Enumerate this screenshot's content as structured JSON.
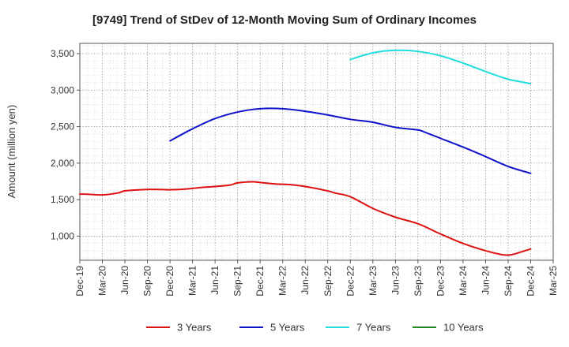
{
  "chart_data": {
    "type": "line",
    "title": "[9749]  Trend of StDev of 12-Month Moving Sum of Ordinary Incomes",
    "xlabel": "",
    "ylabel": "Amount (million yen)",
    "x_ticks": [
      "Dec-19",
      "Mar-20",
      "Jun-20",
      "Sep-20",
      "Dec-20",
      "Mar-21",
      "Jun-21",
      "Sep-21",
      "Dec-21",
      "Mar-22",
      "Jun-22",
      "Sep-22",
      "Dec-22",
      "Mar-23",
      "Jun-23",
      "Sep-23",
      "Dec-23",
      "Mar-24",
      "Jun-24",
      "Sep-24",
      "Dec-24",
      "Mar-25"
    ],
    "y_ticks": [
      1000,
      1500,
      2000,
      2500,
      3000,
      3500
    ],
    "y_tick_labels": [
      "1,000",
      "1,500",
      "2,000",
      "2,500",
      "3,000",
      "3,500"
    ],
    "ylim": [
      670,
      3640
    ],
    "grid": true,
    "legend_position": "bottom",
    "series": [
      {
        "name": "3 Years",
        "color": "#dd1111",
        "x": [
          "Dec-19",
          "Jan-20",
          "Mar-20",
          "May-20",
          "Jun-20",
          "Aug-20",
          "Sep-20",
          "Nov-20",
          "Dec-20",
          "Feb-21",
          "Apr-21",
          "Jun-21",
          "Aug-21",
          "Sep-21",
          "Nov-21",
          "Dec-21",
          "Feb-22",
          "Apr-22",
          "Jun-22",
          "Sep-22",
          "Oct-22",
          "Dec-22",
          "Mar-23",
          "Jun-23",
          "Sep-23",
          "Dec-23",
          "Mar-24",
          "Jun-24",
          "Aug-24",
          "Sep-24",
          "Oct-24",
          "Dec-24"
        ],
        "values": [
          1575,
          1575,
          1565,
          1590,
          1620,
          1635,
          1640,
          1638,
          1635,
          1645,
          1665,
          1680,
          1700,
          1730,
          1745,
          1735,
          1715,
          1705,
          1680,
          1620,
          1590,
          1540,
          1380,
          1260,
          1170,
          1030,
          900,
          800,
          750,
          740,
          760,
          825
        ]
      },
      {
        "name": "5 Years",
        "color": "#1111cc",
        "x": [
          "Dec-20",
          "Mar-21",
          "Jun-21",
          "Sep-21",
          "Dec-21",
          "Mar-22",
          "Jun-22",
          "Sep-22",
          "Dec-22",
          "Mar-23",
          "Jun-23",
          "Sep-23",
          "Oct-23",
          "Dec-23",
          "Mar-24",
          "Jun-24",
          "Sep-24",
          "Dec-24"
        ],
        "values": [
          2305,
          2470,
          2610,
          2700,
          2745,
          2745,
          2710,
          2660,
          2600,
          2560,
          2490,
          2455,
          2420,
          2340,
          2220,
          2090,
          1955,
          1860
        ]
      },
      {
        "name": "7 Years",
        "color": "#22dddd",
        "x": [
          "Dec-22",
          "Mar-23",
          "Jun-23",
          "Sep-23",
          "Dec-23",
          "Mar-24",
          "Jun-24",
          "Sep-24",
          "Dec-24"
        ],
        "values": [
          3420,
          3510,
          3545,
          3530,
          3470,
          3370,
          3255,
          3150,
          3090
        ]
      },
      {
        "name": "10 Years",
        "color": "#228822",
        "x": [],
        "values": []
      }
    ]
  }
}
